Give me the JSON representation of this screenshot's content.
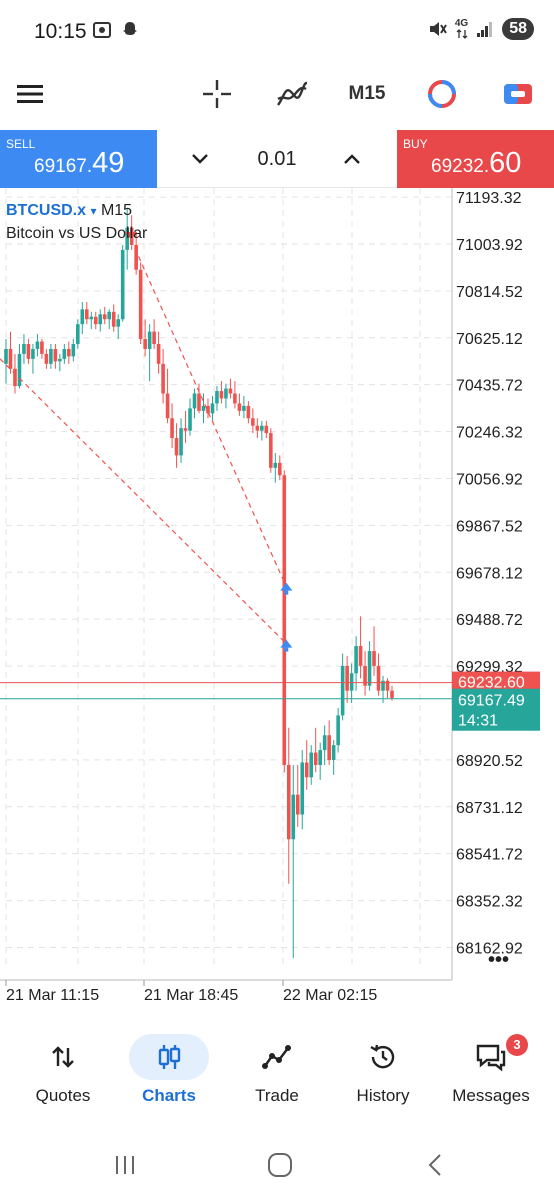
{
  "status_bar": {
    "time": "10:15",
    "network": "4G",
    "battery": "58"
  },
  "toolbar": {
    "timeframe": "M15"
  },
  "trade": {
    "sell_label": "SELL",
    "sell_price_main": "69167.",
    "sell_price_big": "49",
    "buy_label": "BUY",
    "buy_price_main": "69232.",
    "buy_price_big": "60",
    "lot": "0.01"
  },
  "chart": {
    "symbol": "BTCUSD.x",
    "symbol_arrow": "▾",
    "timeframe": "M15",
    "description": "Bitcoin vs US Dollar",
    "more_label": "•••",
    "bid_label": "69167.49",
    "ask_label": "69232.60",
    "countdown": "14:31",
    "colors": {
      "bull": "#26a69a",
      "bear": "#ef5350",
      "buy_line": "#ef5350",
      "bid_line": "#26a69a",
      "trade_arrow": "#3d8bf2"
    }
  },
  "chart_data": {
    "type": "candlestick",
    "title": "",
    "y_ticks": [
      "71193.32",
      "71003.92",
      "70814.52",
      "70625.12",
      "70435.72",
      "70246.32",
      "70056.92",
      "69867.52",
      "69678.12",
      "69488.72",
      "69299.32",
      "68920.52",
      "68731.12",
      "68541.72",
      "68352.32",
      "68162.92"
    ],
    "x_ticks": [
      "21 Mar 11:15",
      "21 Mar 18:45",
      "22 Mar 02:15"
    ],
    "ylim": [
      68080,
      71230
    ],
    "current_ask": 69232.6,
    "current_bid": 69167.49,
    "candles": [
      [
        70520,
        70620,
        70440,
        70580
      ],
      [
        70580,
        70650,
        70480,
        70500
      ],
      [
        70500,
        70560,
        70400,
        70430
      ],
      [
        70430,
        70600,
        70420,
        70560
      ],
      [
        70560,
        70640,
        70520,
        70600
      ],
      [
        70600,
        70620,
        70520,
        70540
      ],
      [
        70540,
        70600,
        70480,
        70580
      ],
      [
        70580,
        70640,
        70550,
        70610
      ],
      [
        70610,
        70620,
        70540,
        70560
      ],
      [
        70560,
        70580,
        70500,
        70520
      ],
      [
        70520,
        70600,
        70500,
        70580
      ],
      [
        70580,
        70600,
        70500,
        70530
      ],
      [
        70530,
        70560,
        70490,
        70540
      ],
      [
        70540,
        70600,
        70520,
        70580
      ],
      [
        70580,
        70610,
        70520,
        70550
      ],
      [
        70550,
        70620,
        70530,
        70600
      ],
      [
        70600,
        70700,
        70580,
        70680
      ],
      [
        70680,
        70770,
        70640,
        70740
      ],
      [
        70740,
        70770,
        70680,
        70700
      ],
      [
        70700,
        70730,
        70660,
        70710
      ],
      [
        70710,
        70730,
        70660,
        70680
      ],
      [
        70680,
        70740,
        70650,
        70720
      ],
      [
        70720,
        70750,
        70680,
        70700
      ],
      [
        70700,
        70740,
        70660,
        70730
      ],
      [
        70730,
        70760,
        70650,
        70670
      ],
      [
        70670,
        70720,
        70620,
        70700
      ],
      [
        70700,
        71000,
        70690,
        70980
      ],
      [
        70980,
        71150,
        70900,
        71070
      ],
      [
        71070,
        71120,
        70980,
        71000
      ],
      [
        71000,
        71050,
        70880,
        70900
      ],
      [
        70900,
        70930,
        70600,
        70620
      ],
      [
        70620,
        70700,
        70550,
        70580
      ],
      [
        70580,
        70680,
        70450,
        70650
      ],
      [
        70650,
        70700,
        70580,
        70600
      ],
      [
        70600,
        70650,
        70480,
        70520
      ],
      [
        70520,
        70580,
        70360,
        70400
      ],
      [
        70400,
        70500,
        70280,
        70300
      ],
      [
        70300,
        70360,
        70180,
        70220
      ],
      [
        70220,
        70280,
        70100,
        70150
      ],
      [
        70150,
        70300,
        70120,
        70260
      ],
      [
        70260,
        70330,
        70200,
        70250
      ],
      [
        70250,
        70380,
        70230,
        70340
      ],
      [
        70340,
        70420,
        70300,
        70400
      ],
      [
        70400,
        70440,
        70320,
        70330
      ],
      [
        70330,
        70400,
        70280,
        70350
      ],
      [
        70350,
        70380,
        70300,
        70320
      ],
      [
        70320,
        70390,
        70290,
        70360
      ],
      [
        70360,
        70430,
        70330,
        70410
      ],
      [
        70410,
        70450,
        70360,
        70380
      ],
      [
        70380,
        70440,
        70340,
        70420
      ],
      [
        70420,
        70460,
        70380,
        70400
      ],
      [
        70400,
        70450,
        70340,
        70360
      ],
      [
        70360,
        70400,
        70310,
        70330
      ],
      [
        70330,
        70390,
        70300,
        70350
      ],
      [
        70350,
        70370,
        70280,
        70300
      ],
      [
        70300,
        70340,
        70240,
        70270
      ],
      [
        70270,
        70300,
        70220,
        70250
      ],
      [
        70250,
        70290,
        70210,
        70270
      ],
      [
        70270,
        70290,
        70220,
        70240
      ],
      [
        70240,
        70260,
        70080,
        70100
      ],
      [
        70100,
        70160,
        70040,
        70120
      ],
      [
        70120,
        70150,
        70050,
        70070
      ],
      [
        70070,
        70090,
        68870,
        68900
      ],
      [
        68900,
        69050,
        68420,
        68600
      ],
      [
        68600,
        68900,
        68120,
        68780
      ],
      [
        68780,
        68900,
        68650,
        68700
      ],
      [
        68700,
        68960,
        68640,
        68910
      ],
      [
        68910,
        69000,
        68800,
        68850
      ],
      [
        68850,
        68980,
        68820,
        68950
      ],
      [
        68950,
        69050,
        68870,
        68900
      ],
      [
        68900,
        68990,
        68840,
        68960
      ],
      [
        68960,
        69060,
        68900,
        69020
      ],
      [
        69020,
        69080,
        68900,
        68920
      ],
      [
        68920,
        69000,
        68860,
        68980
      ],
      [
        68980,
        69130,
        68950,
        69100
      ],
      [
        69100,
        69350,
        69080,
        69300
      ],
      [
        69300,
        69340,
        69150,
        69200
      ],
      [
        69200,
        69310,
        69150,
        69270
      ],
      [
        69270,
        69420,
        69200,
        69380
      ],
      [
        69380,
        69500,
        69250,
        69300
      ],
      [
        69300,
        69360,
        69180,
        69220
      ],
      [
        69220,
        69400,
        69200,
        69360
      ],
      [
        69360,
        69460,
        69260,
        69300
      ],
      [
        69300,
        69350,
        69180,
        69200
      ],
      [
        69200,
        69260,
        69150,
        69240
      ],
      [
        69240,
        69250,
        69170,
        69200
      ],
      [
        69200,
        69220,
        69160,
        69170
      ]
    ],
    "trades": [
      {
        "open_price": 71020,
        "close_price": 69620,
        "direction": "sell"
      },
      {
        "open_price": 70540,
        "close_price": 69390,
        "direction": "sell"
      }
    ]
  },
  "nav": {
    "quotes": "Quotes",
    "charts": "Charts",
    "trade": "Trade",
    "history": "History",
    "messages": "Messages",
    "messages_badge": "3"
  }
}
